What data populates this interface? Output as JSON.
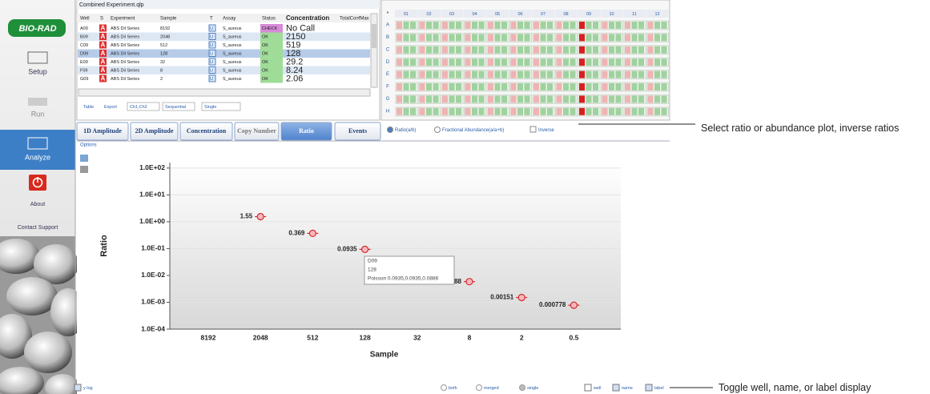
{
  "sidebar": {
    "logo": "BIO-RAD",
    "items": [
      "Setup",
      "Run",
      "Analyze",
      "About",
      "Contact Support"
    ]
  },
  "well_table": {
    "title": "Combined Experiment.qlp",
    "columns": [
      "Well",
      "S",
      "Experiment",
      "Sample",
      "T",
      "Assay",
      "Status",
      "Concentration",
      "TotalConfMax"
    ],
    "rows": [
      [
        "A09",
        "A",
        "ABS Dil Series",
        8192,
        "U",
        "S_aureus",
        "CHECK",
        "No Call"
      ],
      [
        "B09",
        "A",
        "ABS Dil Series",
        2048,
        "U",
        "S_aureus",
        "OK",
        2150
      ],
      [
        "C09",
        "A",
        "ABS Dil Series",
        512,
        "U",
        "S_aureus",
        "OK",
        519
      ],
      [
        "D09",
        "A",
        "ABS Dil Series",
        128,
        "U",
        "S_aureus",
        "OK",
        128
      ],
      [
        "E09",
        "A",
        "ABS Dil Series",
        32,
        "U",
        "S_aureus",
        "OK",
        29.2
      ],
      [
        "F09",
        "A",
        "ABS Dil Series",
        8,
        "U",
        "S_aureus",
        "OK",
        8.24
      ],
      [
        "G09",
        "A",
        "ABS Dil Series",
        2,
        "U",
        "S_aureus",
        "OK",
        2.06
      ]
    ],
    "toolbar": [
      "Table",
      "Export",
      "Ch1,Ch2",
      "Sequential",
      "Single"
    ]
  },
  "plate": {
    "corner": "*",
    "columns": [
      "01",
      "02",
      "03",
      "04",
      "05",
      "06",
      "07",
      "08",
      "09",
      "10",
      "11",
      "12"
    ],
    "rows": [
      "A",
      "B",
      "C",
      "D",
      "E",
      "F",
      "G",
      "H"
    ]
  },
  "tabs": [
    "1D Amplitude",
    "2D Amplitude",
    "Concentration",
    "Copy Number",
    "Ratio",
    "Events"
  ],
  "plot_options": [
    "Ratio(a/b)",
    "Fractional Abundance(a/a+b)",
    "Inverse"
  ],
  "options_label": "Options",
  "chart_data": {
    "type": "scatter",
    "x_label": "Sample",
    "y_label": "Ratio",
    "categories": [
      "8192",
      "2048",
      "512",
      "128",
      "32",
      "8",
      "2",
      "0.5"
    ],
    "values": [
      null,
      1.55,
      0.369,
      0.0935,
      null,
      0.00588,
      0.00151,
      0.000778
    ],
    "color": "#d42a2a",
    "log_y": true,
    "grid": true,
    "ylim": [
      0.0001,
      160
    ],
    "yticks": [
      {
        "value": 100,
        "label": "1.0E+02"
      },
      {
        "value": 10,
        "label": "1.0E+01"
      },
      {
        "value": 1,
        "label": "1.0E+00"
      },
      {
        "value": 0.1,
        "label": "1.0E-01"
      },
      {
        "value": 0.01,
        "label": "1.0E-02"
      },
      {
        "value": 0.001,
        "label": "1.0E-03"
      },
      {
        "value": 0.0001,
        "label": "1.0E-04"
      }
    ]
  },
  "tooltip": [
    "D09",
    "128",
    "Poisson 0.0935,0.0935,0.0886"
  ],
  "bottom_controls": [
    "y log",
    "both",
    "merged",
    "single",
    "well",
    "name",
    "label"
  ],
  "annotations": [
    "Select ratio or abundance plot, inverse ratios",
    "Toggle well, name, or label display"
  ]
}
